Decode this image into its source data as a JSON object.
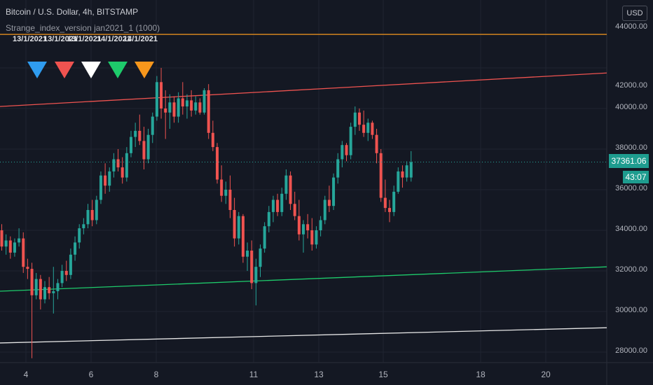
{
  "header": {
    "symbol": "Bitcoin / U.S. Dollar, 4h, BITSTAMP",
    "indicator": "Strange_index_version jan2021_1 (1000)"
  },
  "currency_button": "USD",
  "marker_dates": [
    "13/1/2021",
    "13/1/2021",
    "13/1/2021",
    "14/1/2021",
    "14/1/2021"
  ],
  "marker_colors": [
    "#2f9cf0",
    "#f05350",
    "#ffffff",
    "#1ecb6b",
    "#f7971c"
  ],
  "last_price": "37361.06",
  "countdown": "43:07",
  "colors": {
    "up": "#26a69a",
    "down": "#ef5350",
    "background": "#141823",
    "grid": "#1f2430"
  },
  "y_axis_labels": [
    "44000.00",
    "42000.00",
    "40000.00",
    "38000.00",
    "36000.00",
    "34000.00",
    "32000.00",
    "30000.00",
    "28000.00"
  ],
  "x_axis_labels": [
    "4",
    "6",
    "8",
    "11",
    "13",
    "15",
    "18",
    "20"
  ],
  "chart_data": {
    "type": "candlestick",
    "title": "Bitcoin / U.S. Dollar, 4h, BITSTAMP",
    "ylim": [
      27500,
      45000
    ],
    "x_ticks": [
      "4",
      "6",
      "8",
      "11",
      "13",
      "15",
      "18",
      "20"
    ],
    "candles": [
      [
        34000,
        34300,
        33000,
        33200
      ],
      [
        33200,
        33800,
        32800,
        33500
      ],
      [
        33500,
        33700,
        32600,
        32900
      ],
      [
        32900,
        33600,
        32700,
        33400
      ],
      [
        33400,
        34100,
        33200,
        33600
      ],
      [
        33600,
        33900,
        31900,
        32200
      ],
      [
        32200,
        32600,
        31600,
        32100
      ],
      [
        32100,
        32400,
        27700,
        30800
      ],
      [
        30800,
        31900,
        30600,
        31600
      ],
      [
        31600,
        31800,
        30100,
        30600
      ],
      [
        30600,
        31500,
        30400,
        31200
      ],
      [
        31200,
        31700,
        30600,
        30900
      ],
      [
        30900,
        32200,
        29900,
        31000
      ],
      [
        31000,
        31600,
        30600,
        31400
      ],
      [
        31400,
        32300,
        31200,
        32000
      ],
      [
        32000,
        32500,
        31500,
        31800
      ],
      [
        31800,
        33100,
        31600,
        32800
      ],
      [
        32800,
        33700,
        32500,
        33400
      ],
      [
        33400,
        34300,
        33100,
        34100
      ],
      [
        34100,
        34600,
        33800,
        34300
      ],
      [
        34300,
        35300,
        34100,
        35000
      ],
      [
        35000,
        35500,
        34200,
        34500
      ],
      [
        34500,
        35700,
        34300,
        35500
      ],
      [
        35500,
        36900,
        35300,
        36700
      ],
      [
        36700,
        37300,
        35800,
        36200
      ],
      [
        36200,
        37100,
        35900,
        36900
      ],
      [
        36900,
        37800,
        36600,
        37500
      ],
      [
        37500,
        38000,
        36900,
        37100
      ],
      [
        37100,
        37600,
        36300,
        36600
      ],
      [
        36600,
        38100,
        36400,
        37800
      ],
      [
        37800,
        38900,
        37600,
        38600
      ],
      [
        38600,
        39300,
        38100,
        38900
      ],
      [
        38900,
        39700,
        38200,
        38400
      ],
      [
        38400,
        39100,
        37000,
        37500
      ],
      [
        37500,
        39000,
        37300,
        38700
      ],
      [
        38700,
        39800,
        38300,
        39600
      ],
      [
        39600,
        41600,
        39400,
        41300
      ],
      [
        41300,
        42000,
        39500,
        40000
      ],
      [
        40000,
        40900,
        38500,
        39800
      ],
      [
        39800,
        40700,
        39000,
        40300
      ],
      [
        40300,
        40600,
        39300,
        39600
      ],
      [
        39600,
        40800,
        39300,
        40500
      ],
      [
        40500,
        41300,
        39700,
        40100
      ],
      [
        40100,
        40700,
        39500,
        40400
      ],
      [
        40400,
        40900,
        39600,
        39900
      ],
      [
        39900,
        40600,
        39700,
        40300
      ],
      [
        40300,
        40500,
        39700,
        39800
      ],
      [
        39800,
        41000,
        39700,
        40900
      ],
      [
        40900,
        41200,
        38500,
        38800
      ],
      [
        38800,
        39400,
        37900,
        38100
      ],
      [
        38100,
        38300,
        36300,
        36500
      ],
      [
        36500,
        37200,
        35400,
        35700
      ],
      [
        35700,
        36400,
        35300,
        36000
      ],
      [
        36000,
        36700,
        34600,
        35000
      ],
      [
        35000,
        35600,
        33200,
        33600
      ],
      [
        33600,
        34900,
        33300,
        34700
      ],
      [
        34700,
        34800,
        32400,
        32700
      ],
      [
        32700,
        33400,
        32000,
        33000
      ],
      [
        33000,
        33500,
        31100,
        31400
      ],
      [
        31400,
        32600,
        30300,
        32200
      ],
      [
        32200,
        33300,
        31700,
        33100
      ],
      [
        33100,
        34400,
        32900,
        34200
      ],
      [
        34200,
        35200,
        33900,
        34900
      ],
      [
        34900,
        35700,
        34400,
        35500
      ],
      [
        35500,
        35800,
        34700,
        34900
      ],
      [
        34900,
        36100,
        34700,
        35800
      ],
      [
        35800,
        37000,
        35500,
        36700
      ],
      [
        36700,
        36900,
        35000,
        35300
      ],
      [
        35300,
        35900,
        34500,
        34700
      ],
      [
        34700,
        35500,
        33500,
        33800
      ],
      [
        33800,
        34500,
        32900,
        34300
      ],
      [
        34300,
        34800,
        33600,
        34000
      ],
      [
        34000,
        34600,
        33000,
        33300
      ],
      [
        33300,
        34200,
        33100,
        34000
      ],
      [
        34000,
        34700,
        33700,
        34500
      ],
      [
        34500,
        35700,
        34300,
        35500
      ],
      [
        35500,
        36200,
        34900,
        35200
      ],
      [
        35200,
        36800,
        35000,
        36600
      ],
      [
        36600,
        37800,
        36300,
        37500
      ],
      [
        37500,
        38400,
        37100,
        38200
      ],
      [
        38200,
        38300,
        37400,
        37700
      ],
      [
        37700,
        39300,
        37500,
        39100
      ],
      [
        39100,
        40100,
        38700,
        39800
      ],
      [
        39800,
        40000,
        38900,
        39200
      ],
      [
        39200,
        39900,
        38600,
        38800
      ],
      [
        38800,
        39500,
        38400,
        39300
      ],
      [
        39300,
        39400,
        38500,
        38700
      ],
      [
        38700,
        39000,
        37300,
        37800
      ],
      [
        37800,
        38000,
        35400,
        35600
      ],
      [
        35600,
        36500,
        34900,
        35100
      ],
      [
        35100,
        35500,
        34400,
        34900
      ],
      [
        34900,
        36200,
        34700,
        35900
      ],
      [
        35900,
        37100,
        35800,
        36900
      ],
      [
        36900,
        37200,
        36100,
        36600
      ],
      [
        36600,
        37400,
        36400,
        37200
      ],
      [
        36600,
        37900,
        36400,
        37361
      ]
    ],
    "lines": [
      {
        "name": "orange",
        "color": "#f7971c",
        "y_start": 43650,
        "y_end": 43650
      },
      {
        "name": "red",
        "color": "#ef5350",
        "y_start": 40100,
        "y_end": 41750
      },
      {
        "name": "green",
        "color": "#1ecb6b",
        "y_start": 31000,
        "y_end": 32200
      },
      {
        "name": "white",
        "color": "#e6e6e6",
        "y_start": 28450,
        "y_end": 29200
      }
    ]
  }
}
